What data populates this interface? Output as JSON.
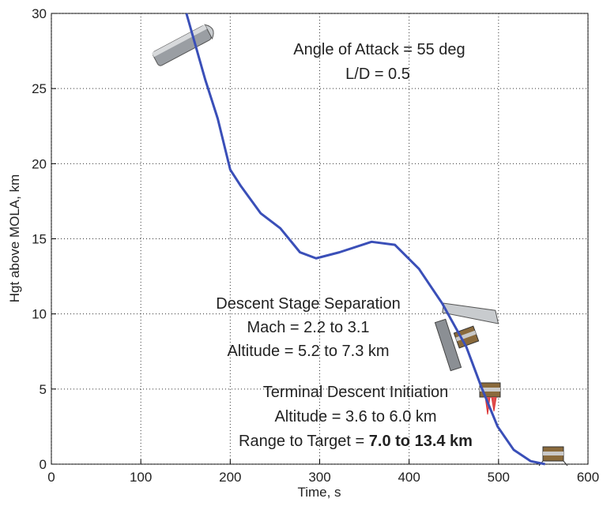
{
  "chart_data": {
    "type": "line",
    "xlabel": "Time, s",
    "ylabel": "Hgt above MOLA, km",
    "x": [
      151,
      172,
      186,
      200,
      212,
      234,
      256,
      278,
      296,
      322,
      358,
      384,
      411,
      437,
      464,
      481,
      499,
      517,
      536,
      552
    ],
    "series": [
      {
        "color": "#3a4fb8",
        "values": [
          30,
          25.6,
          23,
          19.6,
          18.5,
          16.7,
          15.7,
          14.1,
          13.7,
          14.1,
          14.8,
          14.6,
          13,
          10.7,
          7.8,
          5.1,
          2.5,
          0.95,
          0.2,
          0
        ]
      }
    ],
    "xlim": [
      0,
      600
    ],
    "xticks": [
      0,
      100,
      200,
      300,
      400,
      500,
      600
    ],
    "ylim": [
      0,
      30
    ],
    "yticks": [
      0,
      5,
      10,
      15,
      20,
      25,
      30
    ],
    "grid": true,
    "annotations": [
      "Angle of Attack = 55 deg",
      "L/D = 0.5",
      "Descent Stage Separation",
      "Mach = 2.2 to 3.1",
      "Altitude = 5.2 to 7.3 km",
      "Terminal Descent Initiation",
      "Altitude = 3.6 to 6.0 km",
      {
        "text": "Range to Target = ",
        "emphasis": "7.0 to 13.4 km"
      }
    ]
  }
}
